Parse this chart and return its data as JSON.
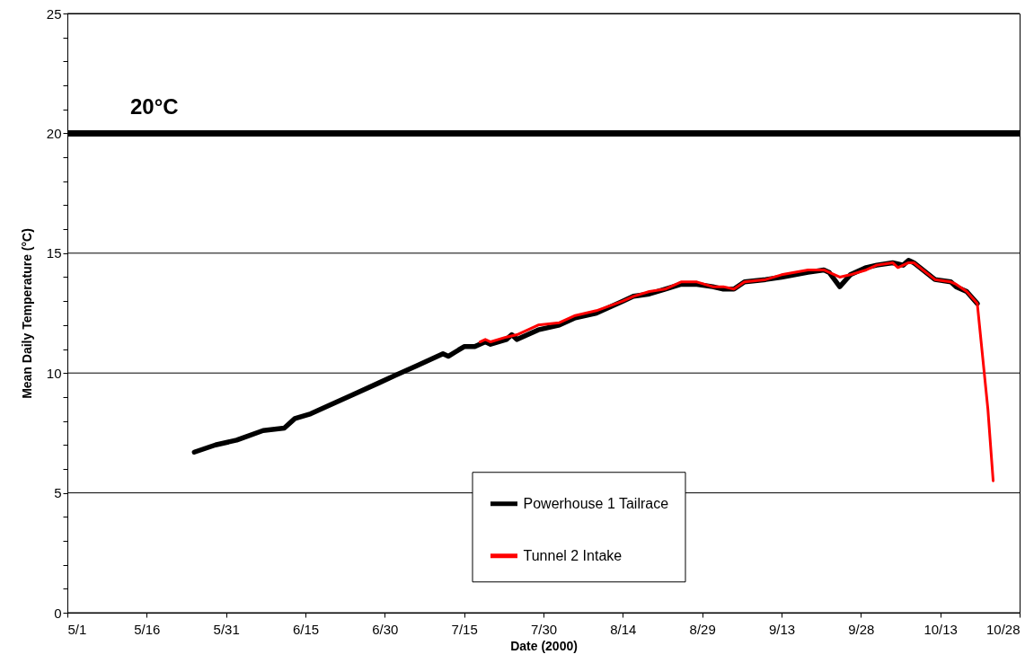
{
  "chart_data": {
    "type": "line",
    "xlabel": "Date (2000)",
    "ylabel": "Mean Daily Temperature (°C)",
    "xlim": [
      "2000-05-01",
      "2000-10-28"
    ],
    "xticks": [
      {
        "value": "2000-05-01",
        "label": "5/1"
      },
      {
        "value": "2000-05-16",
        "label": "5/16"
      },
      {
        "value": "2000-05-31",
        "label": "5/31"
      },
      {
        "value": "2000-06-15",
        "label": "6/15"
      },
      {
        "value": "2000-06-30",
        "label": "6/30"
      },
      {
        "value": "2000-07-15",
        "label": "7/15"
      },
      {
        "value": "2000-07-30",
        "label": "7/30"
      },
      {
        "value": "2000-08-14",
        "label": "8/14"
      },
      {
        "value": "2000-08-29",
        "label": "8/29"
      },
      {
        "value": "2000-09-13",
        "label": "9/13"
      },
      {
        "value": "2000-09-28",
        "label": "9/28"
      },
      {
        "value": "2000-10-13",
        "label": "10/13"
      },
      {
        "value": "2000-10-28",
        "label": "10/28"
      }
    ],
    "ylim": [
      0,
      25
    ],
    "yticks": [
      0,
      {
        "value": 1,
        "label": null
      },
      {
        "value": 2,
        "label": null
      },
      {
        "value": 3,
        "label": null
      },
      {
        "value": 4,
        "label": null
      },
      5,
      {
        "value": 6,
        "label": null
      },
      {
        "value": 7,
        "label": null
      },
      {
        "value": 8,
        "label": null
      },
      {
        "value": 9,
        "label": null
      },
      10,
      {
        "value": 11,
        "label": null
      },
      {
        "value": 12,
        "label": null
      },
      {
        "value": 13,
        "label": null
      },
      {
        "value": 14,
        "label": null
      },
      15,
      {
        "value": 16,
        "label": null
      },
      {
        "value": 17,
        "label": null
      },
      {
        "value": 18,
        "label": null
      },
      {
        "value": 19,
        "label": null
      },
      20,
      {
        "value": 21,
        "label": null
      },
      {
        "value": 22,
        "label": null
      },
      {
        "value": 23,
        "label": null
      },
      {
        "value": 24,
        "label": null
      },
      25
    ],
    "grid": "y",
    "legend": "bottom",
    "ref_lines": [
      {
        "axis": "y",
        "value": 20,
        "label": "20°C",
        "color": "#000000"
      }
    ],
    "series": [
      {
        "name": "Powerhouse 1 Tailrace",
        "color": "#000000",
        "x": [
          "2000-05-25",
          "2000-05-29",
          "2000-06-02",
          "2000-06-07",
          "2000-06-11",
          "2000-06-13",
          "2000-06-16",
          "2000-06-19",
          "2000-06-24",
          "2000-06-29",
          "2000-07-02",
          "2000-07-06",
          "2000-07-11",
          "2000-07-12",
          "2000-07-15",
          "2000-07-17",
          "2000-07-19",
          "2000-07-20",
          "2000-07-23",
          "2000-07-24",
          "2000-07-25",
          "2000-07-29",
          "2000-08-02",
          "2000-08-05",
          "2000-08-09",
          "2000-08-14",
          "2000-08-16",
          "2000-08-19",
          "2000-08-22",
          "2000-08-25",
          "2000-08-28",
          "2000-08-31",
          "2000-09-02",
          "2000-09-04",
          "2000-09-06",
          "2000-09-10",
          "2000-09-13",
          "2000-09-18",
          "2000-09-21",
          "2000-09-22",
          "2000-09-24",
          "2000-09-26",
          "2000-09-29",
          "2000-10-01",
          "2000-10-04",
          "2000-10-06",
          "2000-10-07",
          "2000-10-08",
          "2000-10-12",
          "2000-10-15",
          "2000-10-16",
          "2000-10-18",
          "2000-10-20"
        ],
        "values": [
          6.7,
          7.0,
          7.2,
          7.6,
          7.7,
          8.1,
          8.3,
          8.6,
          9.1,
          9.6,
          9.9,
          10.3,
          10.8,
          10.7,
          11.1,
          11.1,
          11.3,
          11.2,
          11.4,
          11.6,
          11.4,
          11.8,
          12.0,
          12.3,
          12.5,
          13.0,
          13.2,
          13.3,
          13.5,
          13.7,
          13.7,
          13.6,
          13.5,
          13.5,
          13.8,
          13.9,
          14.0,
          14.2,
          14.3,
          14.2,
          13.6,
          14.1,
          14.4,
          14.5,
          14.6,
          14.5,
          14.7,
          14.6,
          13.9,
          13.8,
          13.6,
          13.4,
          12.9
        ]
      },
      {
        "name": "Tunnel 2 Intake",
        "color": "#ff0000",
        "x": [
          "2000-07-18",
          "2000-07-19",
          "2000-07-20",
          "2000-07-23",
          "2000-07-25",
          "2000-07-29",
          "2000-08-02",
          "2000-08-05",
          "2000-08-09",
          "2000-08-14",
          "2000-08-16",
          "2000-08-19",
          "2000-08-22",
          "2000-08-25",
          "2000-08-28",
          "2000-08-31",
          "2000-09-02",
          "2000-09-04",
          "2000-09-06",
          "2000-09-10",
          "2000-09-13",
          "2000-09-18",
          "2000-09-21",
          "2000-09-22",
          "2000-09-24",
          "2000-09-26",
          "2000-09-29",
          "2000-10-01",
          "2000-10-04",
          "2000-10-05",
          "2000-10-07",
          "2000-10-08",
          "2000-10-12",
          "2000-10-15",
          "2000-10-16",
          "2000-10-18",
          "2000-10-20",
          "2000-10-22",
          "2000-10-23"
        ],
        "values": [
          11.3,
          11.4,
          11.3,
          11.5,
          11.6,
          12.0,
          12.1,
          12.4,
          12.6,
          13.0,
          13.2,
          13.4,
          13.5,
          13.8,
          13.8,
          13.6,
          13.6,
          13.5,
          13.8,
          13.9,
          14.1,
          14.3,
          14.3,
          14.2,
          14.0,
          14.1,
          14.3,
          14.5,
          14.6,
          14.4,
          14.6,
          14.6,
          13.9,
          13.8,
          13.7,
          13.4,
          12.9,
          8.5,
          5.5
        ]
      }
    ]
  }
}
